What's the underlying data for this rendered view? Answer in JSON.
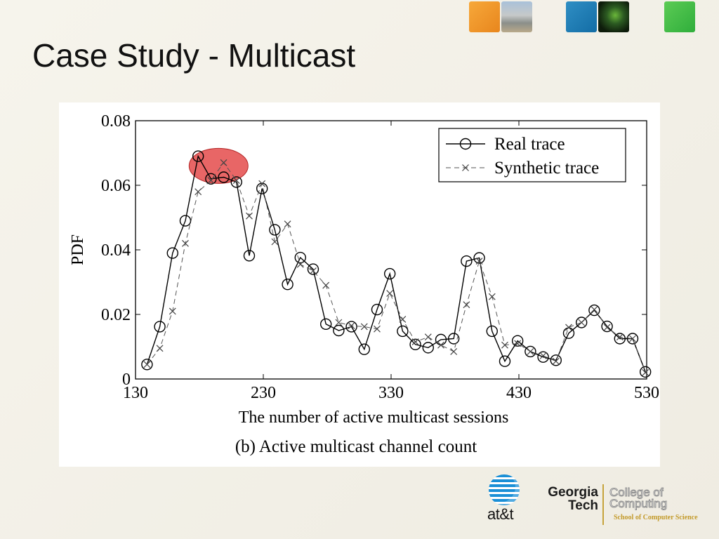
{
  "slide": {
    "title": "Case Study - Multicast"
  },
  "decorations": {
    "corner_tiles": [
      "orange-tile",
      "building-photo",
      "blue-tile",
      "network-photo",
      "green-tile"
    ],
    "colors": {
      "orange": "#f39a2a",
      "blue": "#1f7eb8",
      "green": "#3dba45",
      "highlight": "#e23b3b"
    }
  },
  "chart_data": {
    "type": "line",
    "caption": "(b) Active multicast channel count",
    "xlabel": "The number of active multicast sessions",
    "ylabel": "PDF",
    "xlim": [
      130,
      530
    ],
    "ylim": [
      0,
      0.08
    ],
    "x_ticks": [
      130,
      230,
      330,
      430,
      530
    ],
    "x_tick_labels": [
      "130",
      "230",
      "330",
      "430",
      "530"
    ],
    "y_ticks": [
      0,
      0.02,
      0.04,
      0.06,
      0.08
    ],
    "y_tick_labels": [
      "0",
      "0.02",
      "0.04",
      "0.06",
      "0.08"
    ],
    "legend_position": "top-right",
    "grid": false,
    "highlight": {
      "x": 195,
      "y": 0.066,
      "color": "#e23b3b"
    },
    "series": [
      {
        "name": "Real trace",
        "style": "solid",
        "marker": "circle",
        "x": [
          139,
          149,
          159,
          169,
          179,
          189,
          199,
          209,
          219,
          229,
          239,
          249,
          259,
          269,
          279,
          289,
          299,
          309,
          319,
          329,
          339,
          349,
          359,
          369,
          379,
          389,
          399,
          409,
          419,
          429,
          439,
          449,
          459,
          469,
          479,
          489,
          499,
          509,
          519,
          529
        ],
        "values": [
          0.0045,
          0.0162,
          0.039,
          0.049,
          0.069,
          0.062,
          0.0625,
          0.061,
          0.0382,
          0.059,
          0.0462,
          0.0293,
          0.0376,
          0.034,
          0.017,
          0.015,
          0.0162,
          0.0092,
          0.0215,
          0.0326,
          0.0148,
          0.0107,
          0.0097,
          0.0122,
          0.0125,
          0.0365,
          0.0375,
          0.0148,
          0.0055,
          0.0118,
          0.0085,
          0.0068,
          0.0058,
          0.0142,
          0.0175,
          0.0213,
          0.0163,
          0.0125,
          0.0125,
          0.0022
        ]
      },
      {
        "name": "Synthetic trace",
        "style": "dashed",
        "marker": "x",
        "x": [
          139,
          149,
          159,
          169,
          179,
          189,
          199,
          209,
          219,
          229,
          239,
          249,
          259,
          269,
          279,
          289,
          299,
          309,
          319,
          329,
          339,
          349,
          359,
          369,
          379,
          389,
          399,
          409,
          419,
          429,
          439,
          449,
          459,
          469,
          479,
          489,
          499,
          509,
          519,
          529
        ],
        "values": [
          0.0045,
          0.0095,
          0.021,
          0.042,
          0.058,
          0.0615,
          0.067,
          0.0615,
          0.0505,
          0.0605,
          0.0425,
          0.048,
          0.0355,
          0.0335,
          0.029,
          0.0175,
          0.0165,
          0.0162,
          0.0155,
          0.0265,
          0.0185,
          0.0115,
          0.013,
          0.0105,
          0.0085,
          0.023,
          0.0365,
          0.0255,
          0.0105,
          0.011,
          0.0085,
          0.0072,
          0.0055,
          0.016,
          0.0175,
          0.0215,
          0.016,
          0.013,
          0.0125,
          0.002
        ]
      }
    ]
  },
  "logos": {
    "att": "at&t",
    "georgia_tech": [
      "Georgia",
      "Tech"
    ],
    "college": [
      "College of",
      "Computing"
    ],
    "school": "School of Computer Science"
  }
}
